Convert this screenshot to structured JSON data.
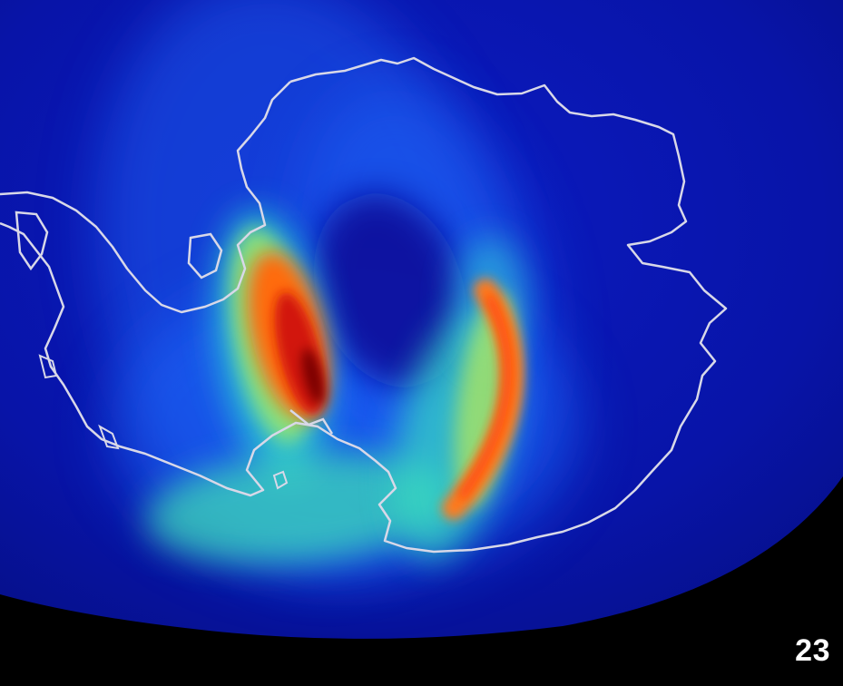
{
  "frame": {
    "label": "23"
  },
  "colors": {
    "background": "#000000",
    "globe": "#0a16b0",
    "coastline": "#d8d8e8",
    "aurora_low": "#1f7fff",
    "aurora_mid": "#33e3c4",
    "aurora_high": "#ff5a10",
    "aurora_peak": "#8a0008"
  },
  "icons": {
    "coastline": "antarctica-coastline",
    "globe": "earth-globe"
  }
}
